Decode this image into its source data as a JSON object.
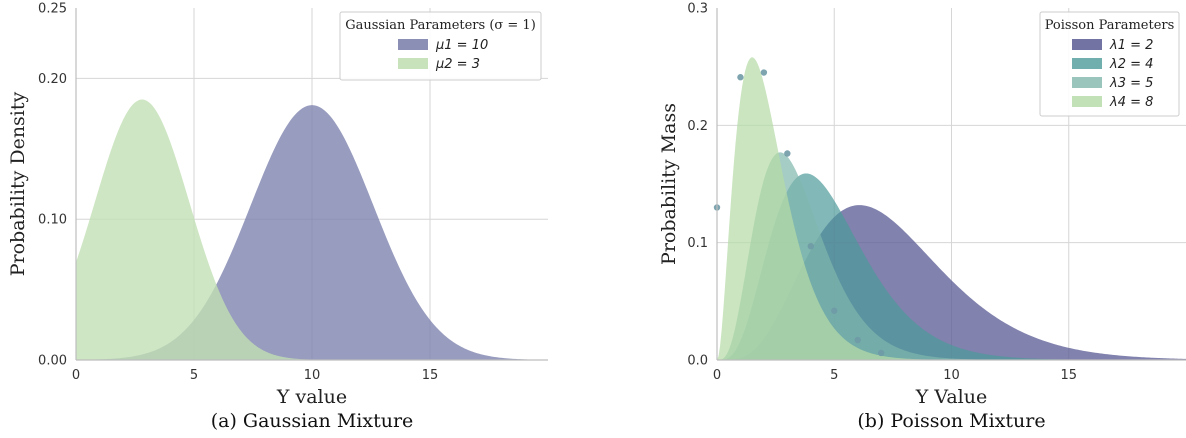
{
  "chart_data": [
    {
      "type": "area",
      "caption": "(a) Gaussian Mixture",
      "xlabel": "Y value",
      "ylabel": "Probability Density",
      "xlim": [
        0,
        20
      ],
      "ylim": [
        0,
        0.25
      ],
      "xticks": [
        0,
        5,
        10,
        15
      ],
      "xtick_labels": [
        "0",
        "5",
        "10",
        "15"
      ],
      "yticks": [
        0,
        0.1,
        0.2,
        0.25
      ],
      "ytick_labels": [
        "0.00",
        "0.10",
        "0.20",
        "0.25"
      ],
      "grid": true,
      "legend": {
        "title": "Gaussian Parameters (σ = 1)",
        "placement": "top-right"
      },
      "series": [
        {
          "name": "μ1 = 10",
          "mean": 10,
          "peak": 0.181,
          "sigma": 2.6,
          "color": "#7b80ac",
          "opacity": 0.78
        },
        {
          "name": "μ2 = 3",
          "mean": 2.8,
          "peak": 0.185,
          "sigma": 2.0,
          "color": "#c2e0b4",
          "opacity": 0.8
        }
      ]
    },
    {
      "type": "area",
      "caption": "(b) Poisson Mixture",
      "xlabel": "Y Value",
      "ylabel": "Probability Mass",
      "xlim": [
        0,
        20
      ],
      "ylim": [
        0,
        0.3
      ],
      "xticks": [
        0,
        5,
        10,
        15
      ],
      "xtick_labels": [
        "0",
        "5",
        "10",
        "15"
      ],
      "yticks": [
        0,
        0.1,
        0.2,
        0.3
      ],
      "ytick_labels": [
        "0.0",
        "0.1",
        "0.2",
        "0.3"
      ],
      "grid": true,
      "legend": {
        "title": "Poisson Parameters",
        "placement": "top-right"
      },
      "series": [
        {
          "name": "λ1 = 2",
          "shape": 5.5,
          "scale": 1.35,
          "peak": 0.132,
          "color": "#5e5f96",
          "opacity": 0.78
        },
        {
          "name": "λ2 = 4",
          "shape": 4.8,
          "scale": 1.0,
          "peak": 0.159,
          "color": "#4d9a9a",
          "opacity": 0.7
        },
        {
          "name": "λ3 = 5",
          "shape": 4.5,
          "scale": 0.77,
          "peak": 0.177,
          "color": "#7fb7ac",
          "opacity": 0.7
        },
        {
          "name": "λ4 = 8",
          "shape": 3.0,
          "scale": 0.75,
          "peak": 0.258,
          "color": "#b6dba6",
          "opacity": 0.72
        }
      ],
      "points": {
        "x": [
          0,
          1,
          2,
          3,
          4,
          5,
          6,
          7
        ],
        "y": [
          0.13,
          0.241,
          0.245,
          0.176,
          0.097,
          0.042,
          0.017,
          0.006
        ],
        "color": "#6f9aa6"
      }
    }
  ]
}
